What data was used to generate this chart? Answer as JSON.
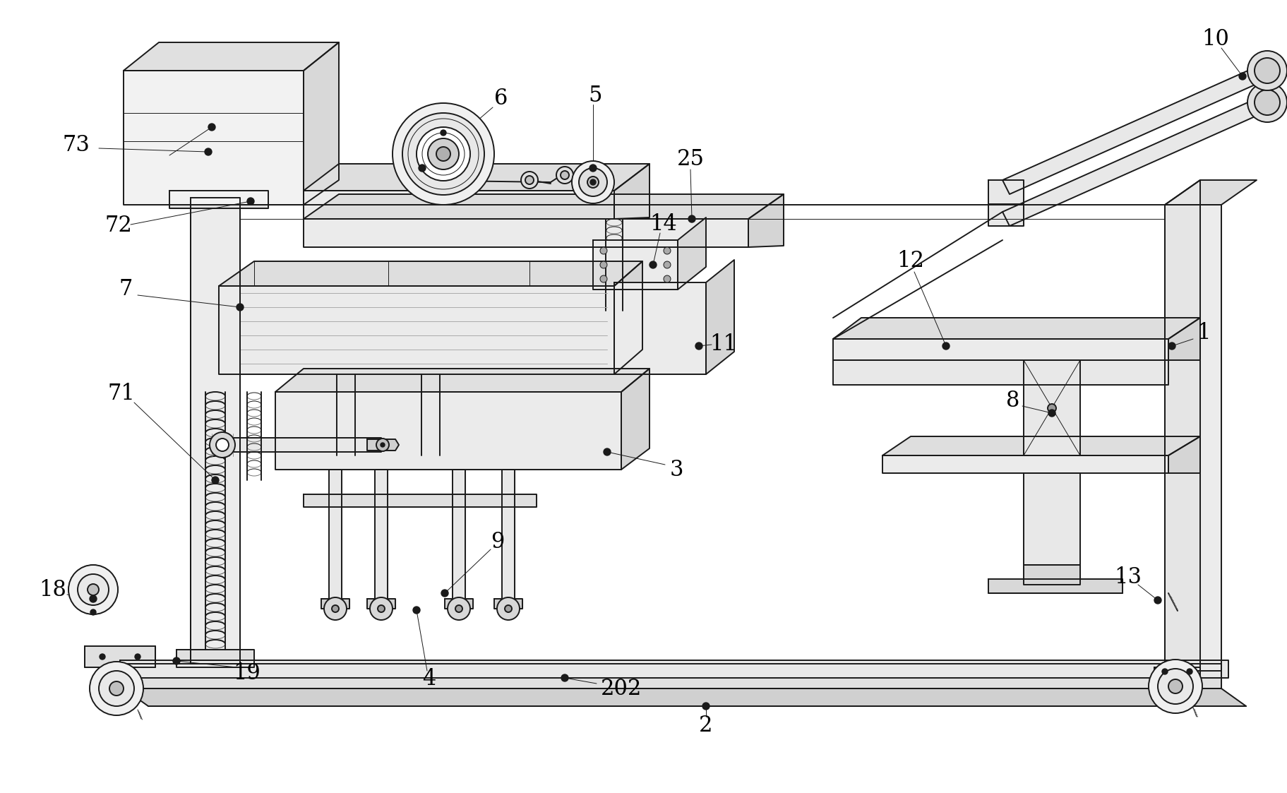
{
  "bg_color": "#ffffff",
  "lc": "#1a1a1a",
  "lw": 1.4,
  "lw_t": 0.7,
  "lw_T": 2.0,
  "fig_w": 18.23,
  "fig_h": 11.23,
  "dpi": 100
}
